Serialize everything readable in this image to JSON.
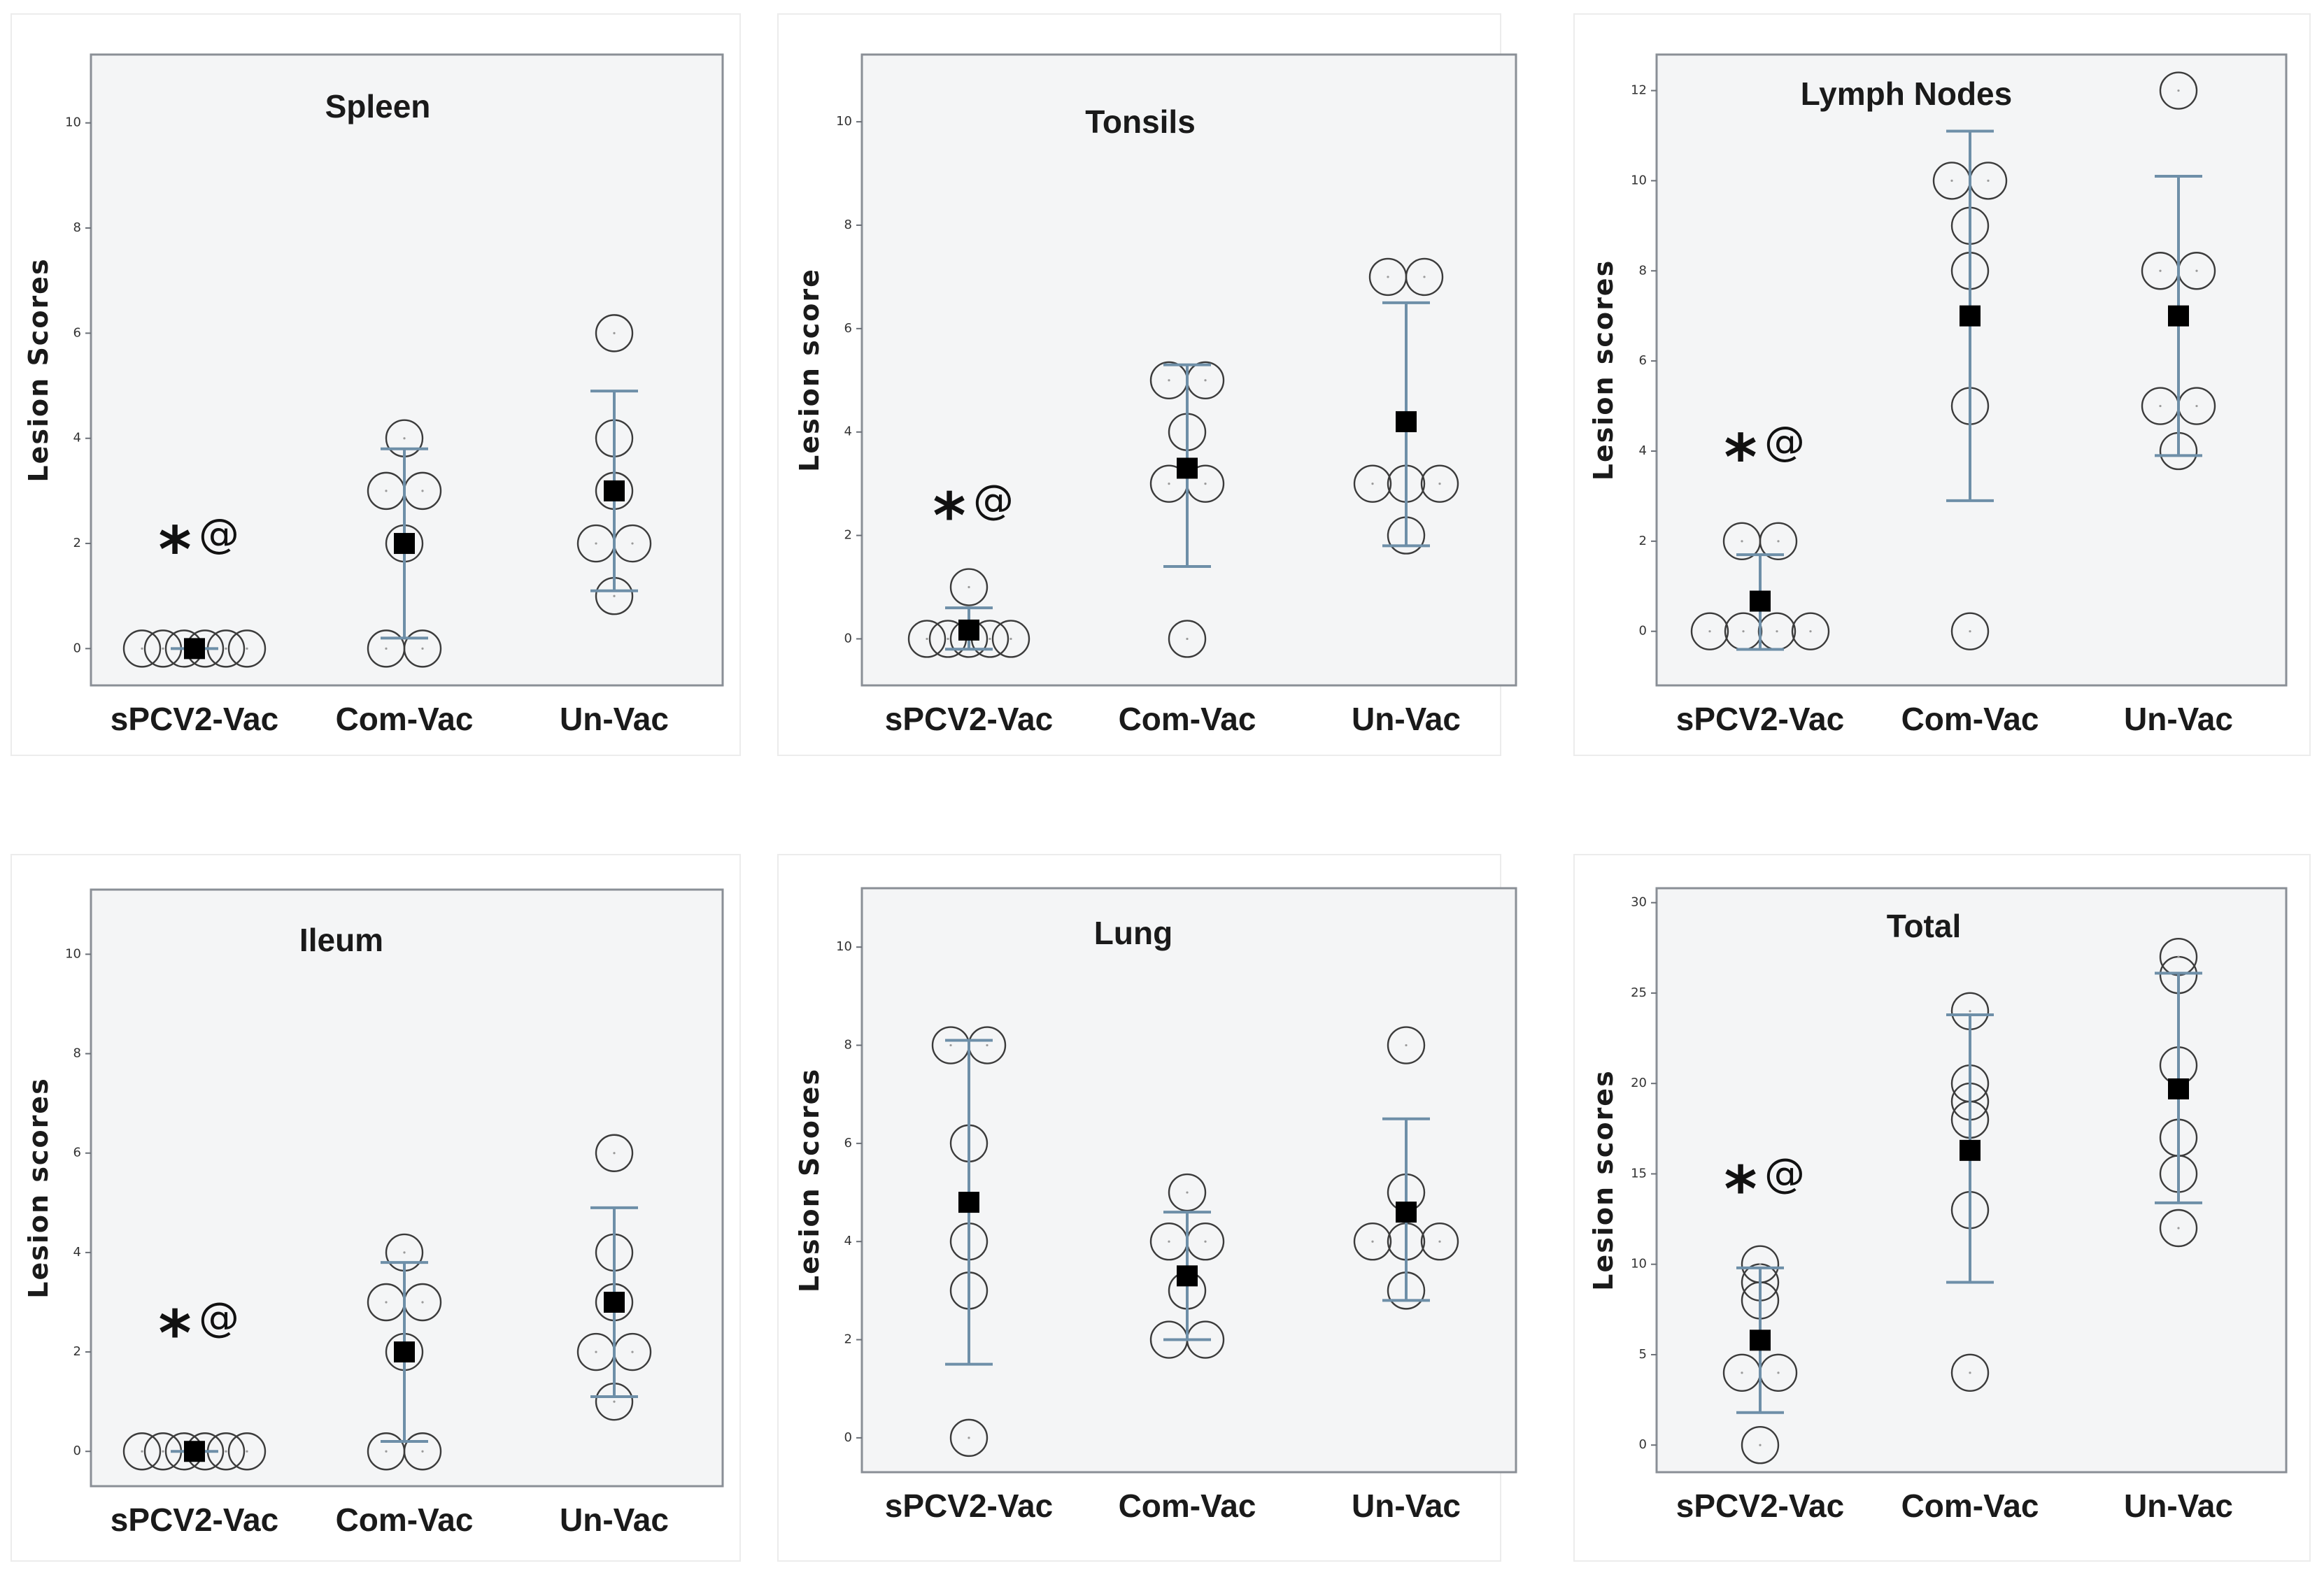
{
  "figure": {
    "categories": [
      "sPCV2-Vac",
      "Com-Vac",
      "Un-Vac"
    ],
    "significance": {
      "star": "*",
      "at": "@"
    }
  },
  "chart_data": [
    {
      "type": "scatter",
      "title": "Spleen",
      "ylabel": "Lesion Scores",
      "ylim": [
        -0.7,
        11.3
      ],
      "yticks": [
        0,
        2,
        4,
        6,
        8,
        10
      ],
      "categories": [
        "sPCV2-Vac",
        "Com-Vac",
        "Un-Vac"
      ],
      "series": [
        {
          "name": "sPCV2-Vac",
          "points": [
            0,
            0,
            0,
            0,
            0,
            0
          ],
          "mean": 0,
          "error_low": 0,
          "error_high": 0
        },
        {
          "name": "Com-Vac",
          "points": [
            0,
            0,
            2,
            3,
            3,
            4
          ],
          "mean": 2,
          "error_low": 0.2,
          "error_high": 3.8
        },
        {
          "name": "Un-Vac",
          "points": [
            1,
            2,
            2,
            3,
            4,
            6
          ],
          "mean": 3,
          "error_low": 1.1,
          "error_high": 4.9
        }
      ],
      "annotation": {
        "category": "sPCV2-Vac",
        "y": 2,
        "text": "*@"
      }
    },
    {
      "type": "scatter",
      "title": "Tonsils",
      "ylabel": "Lesion score",
      "ylim": [
        -0.9,
        11.3
      ],
      "yticks": [
        0,
        2,
        4,
        6,
        8,
        10
      ],
      "categories": [
        "sPCV2-Vac",
        "Com-Vac",
        "Un-Vac"
      ],
      "series": [
        {
          "name": "sPCV2-Vac",
          "points": [
            0,
            0,
            0,
            0,
            0,
            1
          ],
          "mean": 0.17,
          "error_low": -0.2,
          "error_high": 0.6
        },
        {
          "name": "Com-Vac",
          "points": [
            0,
            3,
            3,
            4,
            5,
            5
          ],
          "mean": 3.3,
          "error_low": 1.4,
          "error_high": 5.3
        },
        {
          "name": "Un-Vac",
          "points": [
            2,
            3,
            3,
            3,
            7,
            7
          ],
          "mean": 4.2,
          "error_low": 1.8,
          "error_high": 6.5
        }
      ],
      "annotation": {
        "category": "sPCV2-Vac",
        "y": 2.5,
        "text": "*@"
      }
    },
    {
      "type": "scatter",
      "title": "Lymph Nodes",
      "ylabel": "Lesion scores",
      "ylim": [
        -1.2,
        12.8
      ],
      "yticks": [
        0,
        2,
        4,
        6,
        8,
        10,
        12
      ],
      "categories": [
        "sPCV2-Vac",
        "Com-Vac",
        "Un-Vac"
      ],
      "series": [
        {
          "name": "sPCV2-Vac",
          "points": [
            0,
            0,
            0,
            0,
            2,
            2
          ],
          "mean": 0.67,
          "error_low": -0.4,
          "error_high": 1.7
        },
        {
          "name": "Com-Vac",
          "points": [
            0,
            5,
            8,
            9,
            10,
            10
          ],
          "mean": 7,
          "error_low": 2.9,
          "error_high": 11.1
        },
        {
          "name": "Un-Vac",
          "points": [
            4,
            5,
            5,
            8,
            8,
            12
          ],
          "mean": 7,
          "error_low": 3.9,
          "error_high": 10.1
        }
      ],
      "annotation": {
        "category": "sPCV2-Vac",
        "y": 4,
        "text": "*@"
      }
    },
    {
      "type": "scatter",
      "title": "Ileum",
      "ylabel": "Lesion scores",
      "ylim": [
        -0.7,
        11.3
      ],
      "yticks": [
        0,
        2,
        4,
        6,
        8,
        10
      ],
      "categories": [
        "sPCV2-Vac",
        "Com-Vac",
        "Un-Vac"
      ],
      "series": [
        {
          "name": "sPCV2-Vac",
          "points": [
            0,
            0,
            0,
            0,
            0,
            0
          ],
          "mean": 0,
          "error_low": 0,
          "error_high": 0
        },
        {
          "name": "Com-Vac",
          "points": [
            0,
            0,
            2,
            3,
            3,
            4
          ],
          "mean": 2,
          "error_low": 0.2,
          "error_high": 3.8
        },
        {
          "name": "Un-Vac",
          "points": [
            1,
            2,
            2,
            3,
            4,
            6
          ],
          "mean": 3,
          "error_low": 1.1,
          "error_high": 4.9
        }
      ],
      "annotation": {
        "category": "sPCV2-Vac",
        "y": 2.5,
        "text": "*@"
      }
    },
    {
      "type": "scatter",
      "title": "Lung",
      "ylabel": "Lesion Scores",
      "ylim": [
        -0.7,
        11.2
      ],
      "yticks": [
        0,
        2,
        4,
        6,
        8,
        10
      ],
      "categories": [
        "sPCV2-Vac",
        "Com-Vac",
        "Un-Vac"
      ],
      "series": [
        {
          "name": "sPCV2-Vac",
          "points": [
            0,
            3,
            4,
            6,
            8,
            8
          ],
          "mean": 4.8,
          "error_low": 1.5,
          "error_high": 8.1
        },
        {
          "name": "Com-Vac",
          "points": [
            2,
            2,
            3,
            4,
            4,
            5
          ],
          "mean": 3.3,
          "error_low": 2.0,
          "error_high": 4.6
        },
        {
          "name": "Un-Vac",
          "points": [
            3,
            4,
            4,
            4,
            5,
            8
          ],
          "mean": 4.6,
          "error_low": 2.8,
          "error_high": 6.5
        }
      ]
    },
    {
      "type": "scatter",
      "title": "Total",
      "ylabel": "Lesion scores",
      "ylim": [
        -1.5,
        30.8
      ],
      "yticks": [
        0,
        5,
        10,
        15,
        20,
        25,
        30
      ],
      "categories": [
        "sPCV2-Vac",
        "Com-Vac",
        "Un-Vac"
      ],
      "series": [
        {
          "name": "sPCV2-Vac",
          "points": [
            0,
            4,
            4,
            8,
            9,
            10
          ],
          "mean": 5.8,
          "error_low": 1.8,
          "error_high": 9.8
        },
        {
          "name": "Com-Vac",
          "points": [
            4,
            13,
            18,
            19,
            20,
            24
          ],
          "mean": 16.3,
          "error_low": 9,
          "error_high": 23.8
        },
        {
          "name": "Un-Vac",
          "points": [
            12,
            15,
            17,
            21,
            26,
            27
          ],
          "mean": 19.7,
          "error_low": 13.4,
          "error_high": 26.1
        }
      ],
      "annotation": {
        "category": "sPCV2-Vac",
        "y": 14.5,
        "text": "*@"
      }
    }
  ]
}
